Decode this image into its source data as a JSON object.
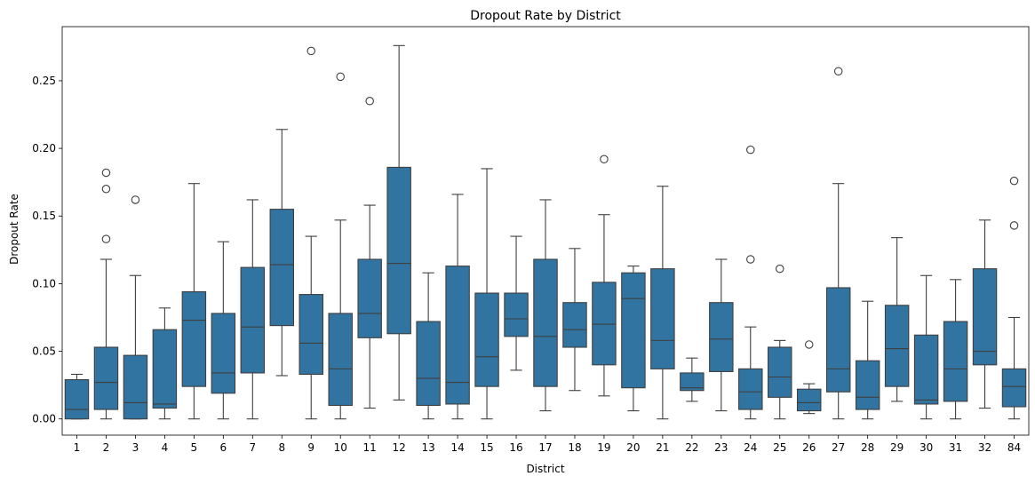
{
  "chart_data": {
    "type": "box",
    "title": "Dropout Rate by District",
    "xlabel": "District",
    "ylabel": "Dropout Rate",
    "ylim": [
      -0.012,
      0.29
    ],
    "yticks": [
      0.0,
      0.05,
      0.1,
      0.15,
      0.2,
      0.25
    ],
    "ytick_labels": [
      "0.00",
      "0.05",
      "0.10",
      "0.15",
      "0.20",
      "0.25"
    ],
    "grid": false,
    "box_color": "#3274a1",
    "categories": [
      "1",
      "2",
      "3",
      "4",
      "5",
      "6",
      "7",
      "8",
      "9",
      "10",
      "11",
      "12",
      "13",
      "14",
      "15",
      "16",
      "17",
      "18",
      "19",
      "20",
      "21",
      "22",
      "23",
      "24",
      "25",
      "26",
      "27",
      "28",
      "29",
      "30",
      "31",
      "32",
      "84"
    ],
    "boxes": [
      {
        "low": 0.0,
        "q1": 0.0,
        "median": 0.007,
        "q3": 0.029,
        "high": 0.033,
        "outliers": []
      },
      {
        "low": 0.0,
        "q1": 0.007,
        "median": 0.027,
        "q3": 0.053,
        "high": 0.118,
        "outliers": [
          0.133,
          0.17,
          0.182
        ]
      },
      {
        "low": 0.0,
        "q1": 0.0,
        "median": 0.012,
        "q3": 0.047,
        "high": 0.106,
        "outliers": [
          0.162
        ]
      },
      {
        "low": 0.0,
        "q1": 0.008,
        "median": 0.011,
        "q3": 0.066,
        "high": 0.082,
        "outliers": []
      },
      {
        "low": 0.0,
        "q1": 0.024,
        "median": 0.073,
        "q3": 0.094,
        "high": 0.174,
        "outliers": []
      },
      {
        "low": 0.0,
        "q1": 0.019,
        "median": 0.034,
        "q3": 0.078,
        "high": 0.131,
        "outliers": []
      },
      {
        "low": 0.0,
        "q1": 0.034,
        "median": 0.068,
        "q3": 0.112,
        "high": 0.162,
        "outliers": []
      },
      {
        "low": 0.032,
        "q1": 0.069,
        "median": 0.114,
        "q3": 0.155,
        "high": 0.214,
        "outliers": []
      },
      {
        "low": 0.0,
        "q1": 0.033,
        "median": 0.056,
        "q3": 0.092,
        "high": 0.135,
        "outliers": [
          0.272
        ]
      },
      {
        "low": 0.0,
        "q1": 0.01,
        "median": 0.037,
        "q3": 0.078,
        "high": 0.147,
        "outliers": [
          0.253
        ]
      },
      {
        "low": 0.008,
        "q1": 0.06,
        "median": 0.078,
        "q3": 0.118,
        "high": 0.158,
        "outliers": [
          0.235
        ]
      },
      {
        "low": 0.014,
        "q1": 0.063,
        "median": 0.115,
        "q3": 0.186,
        "high": 0.276,
        "outliers": []
      },
      {
        "low": 0.0,
        "q1": 0.01,
        "median": 0.03,
        "q3": 0.072,
        "high": 0.108,
        "outliers": []
      },
      {
        "low": 0.0,
        "q1": 0.011,
        "median": 0.027,
        "q3": 0.113,
        "high": 0.166,
        "outliers": []
      },
      {
        "low": 0.0,
        "q1": 0.024,
        "median": 0.046,
        "q3": 0.093,
        "high": 0.185,
        "outliers": []
      },
      {
        "low": 0.036,
        "q1": 0.061,
        "median": 0.074,
        "q3": 0.093,
        "high": 0.135,
        "outliers": []
      },
      {
        "low": 0.006,
        "q1": 0.024,
        "median": 0.061,
        "q3": 0.118,
        "high": 0.162,
        "outliers": []
      },
      {
        "low": 0.021,
        "q1": 0.053,
        "median": 0.066,
        "q3": 0.086,
        "high": 0.126,
        "outliers": []
      },
      {
        "low": 0.017,
        "q1": 0.04,
        "median": 0.07,
        "q3": 0.101,
        "high": 0.151,
        "outliers": [
          0.192
        ]
      },
      {
        "low": 0.006,
        "q1": 0.023,
        "median": 0.089,
        "q3": 0.108,
        "high": 0.113,
        "outliers": []
      },
      {
        "low": 0.0,
        "q1": 0.037,
        "median": 0.058,
        "q3": 0.111,
        "high": 0.172,
        "outliers": []
      },
      {
        "low": 0.013,
        "q1": 0.021,
        "median": 0.023,
        "q3": 0.034,
        "high": 0.045,
        "outliers": []
      },
      {
        "low": 0.006,
        "q1": 0.035,
        "median": 0.059,
        "q3": 0.086,
        "high": 0.118,
        "outliers": []
      },
      {
        "low": 0.0,
        "q1": 0.007,
        "median": 0.02,
        "q3": 0.037,
        "high": 0.068,
        "outliers": [
          0.118,
          0.199
        ]
      },
      {
        "low": 0.0,
        "q1": 0.016,
        "median": 0.031,
        "q3": 0.053,
        "high": 0.058,
        "outliers": [
          0.111
        ]
      },
      {
        "low": 0.004,
        "q1": 0.006,
        "median": 0.012,
        "q3": 0.022,
        "high": 0.026,
        "outliers": [
          0.055
        ]
      },
      {
        "low": 0.0,
        "q1": 0.02,
        "median": 0.037,
        "q3": 0.097,
        "high": 0.174,
        "outliers": [
          0.257
        ]
      },
      {
        "low": 0.0,
        "q1": 0.007,
        "median": 0.016,
        "q3": 0.043,
        "high": 0.087,
        "outliers": []
      },
      {
        "low": 0.013,
        "q1": 0.024,
        "median": 0.052,
        "q3": 0.084,
        "high": 0.134,
        "outliers": []
      },
      {
        "low": 0.0,
        "q1": 0.011,
        "median": 0.014,
        "q3": 0.062,
        "high": 0.106,
        "outliers": []
      },
      {
        "low": 0.0,
        "q1": 0.013,
        "median": 0.037,
        "q3": 0.072,
        "high": 0.103,
        "outliers": []
      },
      {
        "low": 0.008,
        "q1": 0.04,
        "median": 0.05,
        "q3": 0.111,
        "high": 0.147,
        "outliers": []
      },
      {
        "low": 0.0,
        "q1": 0.009,
        "median": 0.024,
        "q3": 0.037,
        "high": 0.075,
        "outliers": [
          0.143,
          0.176
        ]
      }
    ]
  }
}
